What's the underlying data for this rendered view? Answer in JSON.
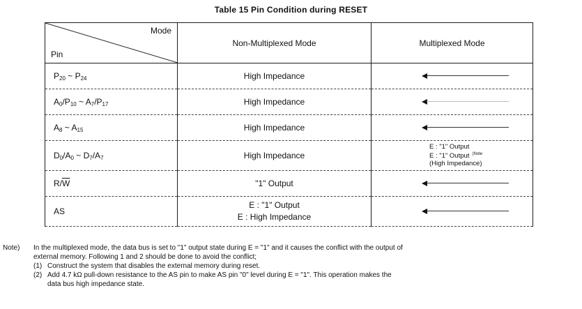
{
  "title": "Table 15   Pin Condition during RESET",
  "header": {
    "mode_label": "Mode",
    "pin_label": "Pin",
    "col_non_mux": "Non-Multiplexed Mode",
    "col_mux": "Multiplexed Mode"
  },
  "rows": [
    {
      "pin": [
        {
          "t": "P"
        },
        {
          "s": "20"
        },
        {
          "t": " ~ P"
        },
        {
          "s": "24"
        }
      ],
      "non_mux": [
        "High Impedance"
      ],
      "mux_arrow": true
    },
    {
      "pin": [
        {
          "t": "A"
        },
        {
          "s": "0"
        },
        {
          "t": "/P"
        },
        {
          "s": "10"
        },
        {
          "t": " ~ A"
        },
        {
          "s": "7"
        },
        {
          "t": "/P"
        },
        {
          "s": "17"
        }
      ],
      "non_mux": [
        "High Impedance"
      ],
      "mux_arrow": true
    },
    {
      "pin": [
        {
          "t": "A"
        },
        {
          "s": "8"
        },
        {
          "t": " ~ A"
        },
        {
          "s": "15"
        }
      ],
      "non_mux": [
        "High Impedance"
      ],
      "mux_arrow": true
    },
    {
      "pin": [
        {
          "t": "D"
        },
        {
          "s": "0"
        },
        {
          "t": "/A"
        },
        {
          "s": "0"
        },
        {
          "t": " ~ D"
        },
        {
          "s": "7"
        },
        {
          "t": "/A"
        },
        {
          "s": "7"
        }
      ],
      "non_mux": [
        "High Impedance"
      ],
      "mux_arrow": false,
      "mux_lines": [
        "E : \"1\" Output",
        "E : \"1\" Output",
        "(High Impedance)"
      ],
      "mux_note_mark": "(Note"
    },
    {
      "pin": [
        {
          "t": "R/"
        },
        {
          "o": "W"
        }
      ],
      "non_mux": [
        "\"1\" Output"
      ],
      "mux_arrow": true
    },
    {
      "pin": [
        {
          "t": "AS"
        }
      ],
      "non_mux": [
        "E : \"1\" Output",
        "E : High Impedance"
      ],
      "mux_arrow": true
    }
  ],
  "note": {
    "tag": "Note)",
    "line1": "In the multiplexed mode, the data bus is set to \"1\" output state during E = \"1\" and it causes the conflict with the output of",
    "line2": "external memory. Following 1 and 2 should be done to avoid the conflict;",
    "items": [
      {
        "num": "(1)",
        "text": "Construct the system that disables the external memory during reset."
      },
      {
        "num": "(2)",
        "text": "Add 4.7 kΩ pull-down resistance to the AS pin to make AS pin \"0\" level during E = \"1\".  This operation makes the",
        "cont": "data bus high impedance state."
      }
    ]
  }
}
